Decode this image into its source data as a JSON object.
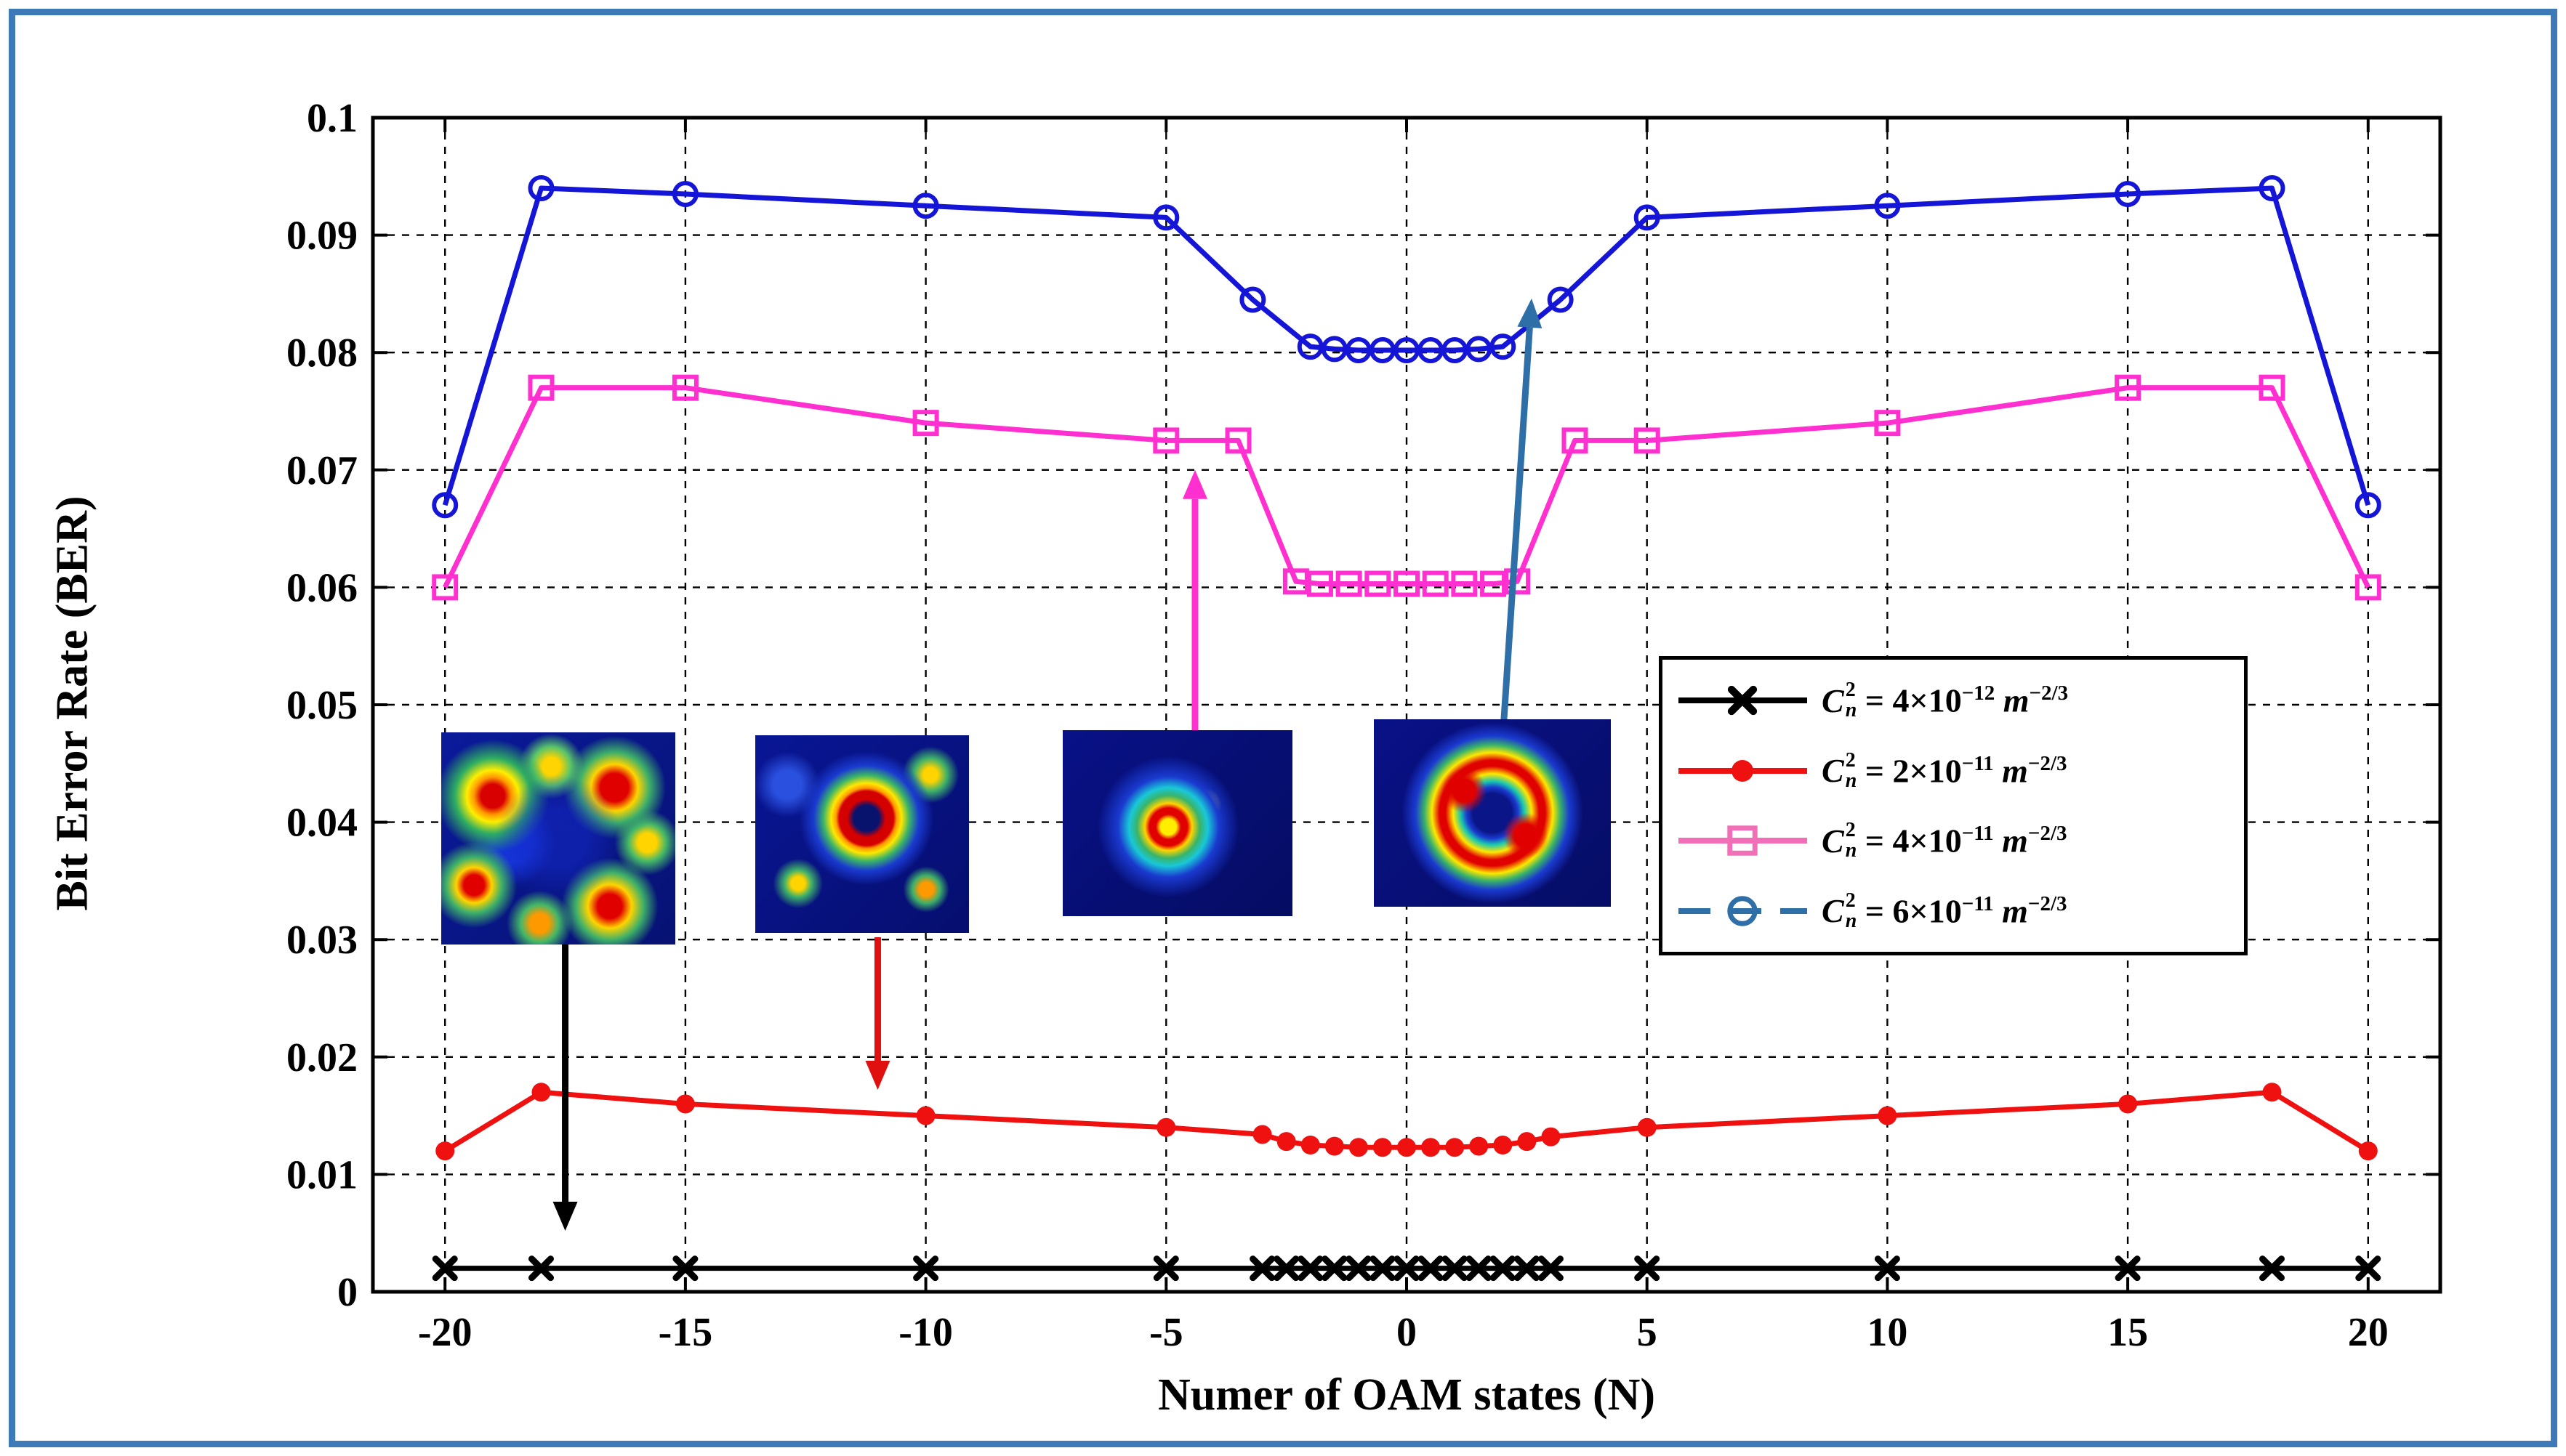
{
  "frame": {
    "border_color": "#3e7ab8"
  },
  "chart_data": {
    "type": "line",
    "title": "",
    "xlabel": "Numer of OAM states (N)",
    "ylabel": "Bit Error Rate (BER)",
    "xlim": [
      -21.5,
      21.5
    ],
    "ylim": [
      0,
      0.1
    ],
    "xticks": [
      -20,
      -15,
      -10,
      -5,
      0,
      5,
      10,
      15,
      20
    ],
    "xtick_labels": [
      "-20",
      "-15",
      "-10",
      "-5",
      "0",
      "5",
      "10",
      "15",
      "20"
    ],
    "yticks": [
      0,
      0.01,
      0.02,
      0.03,
      0.04,
      0.05,
      0.06,
      0.07,
      0.08,
      0.09,
      0.1
    ],
    "ytick_labels": [
      "0",
      "0.01",
      "0.02",
      "0.03",
      "0.04",
      "0.05",
      "0.06",
      "0.07",
      "0.08",
      "0.09",
      "0.1"
    ],
    "grid": "dashed",
    "series": [
      {
        "name": "Cn2 = 4x10-12 m-2/3",
        "color": "#000000",
        "marker": "x",
        "line_dash": "",
        "x": [
          -20,
          -18,
          -15,
          -10,
          -5,
          -3,
          -2.5,
          -2,
          -1.5,
          -1,
          -0.5,
          0,
          0.5,
          1,
          1.5,
          2,
          2.5,
          3,
          5,
          10,
          15,
          18,
          20
        ],
        "y": [
          0.002,
          0.002,
          0.002,
          0.002,
          0.002,
          0.002,
          0.002,
          0.002,
          0.002,
          0.002,
          0.002,
          0.002,
          0.002,
          0.002,
          0.002,
          0.002,
          0.002,
          0.002,
          0.002,
          0.002,
          0.002,
          0.002,
          0.002
        ]
      },
      {
        "name": "Cn2 = 2x10-11 m-2/3",
        "color": "#ef1010",
        "marker": "circle-filled",
        "line_dash": "",
        "x": [
          -20,
          -18,
          -15,
          -10,
          -5,
          -3,
          -2.5,
          -2,
          -1.5,
          -1,
          -0.5,
          0,
          0.5,
          1,
          1.5,
          2,
          2.5,
          3,
          5,
          10,
          15,
          18,
          20
        ],
        "y": [
          0.012,
          0.017,
          0.016,
          0.015,
          0.014,
          0.0134,
          0.0128,
          0.0125,
          0.0124,
          0.0123,
          0.0123,
          0.0123,
          0.0123,
          0.0123,
          0.0124,
          0.0125,
          0.0128,
          0.0132,
          0.014,
          0.015,
          0.016,
          0.017,
          0.012
        ]
      },
      {
        "name": "Cn2 = 4x10-11 m-2/3",
        "color": "#ff2fd0",
        "marker": "square-open",
        "line_dash": "",
        "x": [
          -20,
          -18,
          -15,
          -10,
          -5,
          -3.5,
          -2.3,
          -1.8,
          -1.2,
          -0.6,
          0,
          0.6,
          1.2,
          1.8,
          2.3,
          3.5,
          5,
          10,
          15,
          18,
          20
        ],
        "y": [
          0.06,
          0.077,
          0.077,
          0.074,
          0.0725,
          0.0725,
          0.0605,
          0.0603,
          0.0603,
          0.0603,
          0.0603,
          0.0603,
          0.0603,
          0.0603,
          0.0605,
          0.0725,
          0.0725,
          0.074,
          0.077,
          0.077,
          0.06
        ]
      },
      {
        "name": "Cn2 = 6x10-11 m-2/3",
        "color": "#1515d8",
        "marker": "circle-open",
        "line_dash": "",
        "x": [
          -20,
          -18,
          -15,
          -10,
          -5,
          -3.2,
          -2,
          -1.5,
          -1,
          -0.5,
          0,
          0.5,
          1,
          1.5,
          2,
          3.2,
          5,
          10,
          15,
          18,
          20
        ],
        "y": [
          0.067,
          0.094,
          0.0935,
          0.0925,
          0.0915,
          0.0845,
          0.0805,
          0.0803,
          0.0802,
          0.0802,
          0.0802,
          0.0802,
          0.0802,
          0.0803,
          0.0805,
          0.0845,
          0.0915,
          0.0925,
          0.0935,
          0.094,
          0.067
        ]
      }
    ],
    "legend": {
      "position": "middle-right",
      "symbol_base": "C",
      "symbol_sub": "n",
      "symbol_sup": "2",
      "equals": "=",
      "times": "×",
      "base_ten": "10",
      "unit": "m",
      "unit_exponent": "−2/3",
      "items": [
        {
          "coefficient": "4",
          "exponent": "−12",
          "sample_color": "#000000",
          "sample_marker": "x",
          "sample_dash": ""
        },
        {
          "coefficient": "2",
          "exponent": "−11",
          "sample_color": "#ef1010",
          "sample_marker": "circle-filled",
          "sample_dash": ""
        },
        {
          "coefficient": "4",
          "exponent": "−11",
          "sample_color": "#f06fb6",
          "sample_marker": "square-open",
          "sample_dash": ""
        },
        {
          "coefficient": "6",
          "exponent": "−11",
          "sample_color": "#2e6fa8",
          "sample_marker": "circle-open",
          "sample_dash": "44 26"
        }
      ]
    },
    "annotations": {
      "arrows": [
        {
          "name": "arrow-to-black-series",
          "color": "#000000",
          "from": [
            -17.5,
            0.0312
          ],
          "to": [
            -17.5,
            0.0052
          ]
        },
        {
          "name": "arrow-to-red-series",
          "color": "#e01010",
          "from": [
            -11.0,
            0.0302
          ],
          "to": [
            -11.0,
            0.0172
          ]
        },
        {
          "name": "arrow-to-magenta-series",
          "color": "#ff2fd0",
          "from": [
            -4.4,
            0.0466
          ],
          "to": [
            -4.4,
            0.07
          ]
        },
        {
          "name": "arrow-to-blue-series",
          "color": "#2e6fa8",
          "from": [
            2.0,
            0.0472
          ],
          "to": [
            2.6,
            0.0846
          ]
        }
      ],
      "insets": [
        {
          "name": "beam-profile-strong-turbulence"
        },
        {
          "name": "beam-profile-moderate-turbulence"
        },
        {
          "name": "beam-profile-weak-turbulence"
        },
        {
          "name": "beam-profile-clean-vortex"
        }
      ]
    }
  }
}
